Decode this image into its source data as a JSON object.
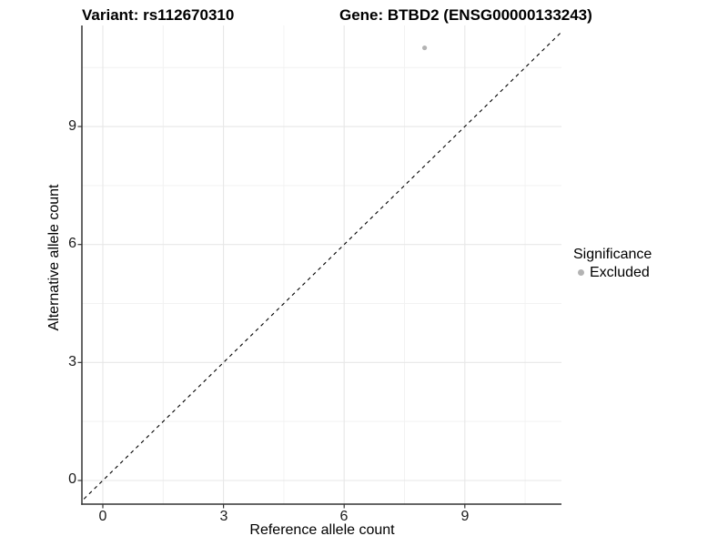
{
  "header": {
    "title_variant": "Variant: rs112670310",
    "title_gene": "Gene: BTBD2 (ENSG00000133243)"
  },
  "axes": {
    "x": {
      "label": "Reference allele count",
      "ticks": [
        "0",
        "3",
        "6",
        "9"
      ]
    },
    "y": {
      "label": "Alternative allele count",
      "ticks": [
        "0",
        "3",
        "6",
        "9"
      ]
    }
  },
  "legend": {
    "title": "Significance",
    "items": [
      {
        "label": "Excluded",
        "color": "#b3b3b3"
      }
    ]
  },
  "colors": {
    "axis_line": "#333333",
    "grid_major": "#e7e7e7",
    "grid_minor": "#f2f2f2",
    "reference_line": "#000000",
    "point": "#b3b3b3"
  },
  "chart_data": {
    "type": "scatter",
    "title_left": "Variant: rs112670310",
    "title_right": "Gene: BTBD2 (ENSG00000133243)",
    "xlabel": "Reference allele count",
    "ylabel": "Alternative allele count",
    "xlim": [
      -0.5,
      11.4
    ],
    "ylim": [
      -0.6,
      11.6
    ],
    "x_ticks": [
      0,
      3,
      6,
      9
    ],
    "y_ticks": [
      0,
      3,
      6,
      9
    ],
    "x_minor_ticks": [
      1.5,
      4.5,
      7.5,
      10.5
    ],
    "y_minor_ticks": [
      1.5,
      4.5,
      7.5,
      10.5
    ],
    "grid": "major+minor",
    "legend_position": "right",
    "series": [
      {
        "name": "Excluded",
        "color": "#b3b3b3",
        "points": [
          {
            "x": 8,
            "y": 11
          }
        ]
      }
    ],
    "reference_line": {
      "type": "identity",
      "style": "dashed",
      "from": {
        "x": -0.6,
        "y": -0.6
      },
      "to": {
        "x": 11.6,
        "y": 11.6
      }
    }
  }
}
